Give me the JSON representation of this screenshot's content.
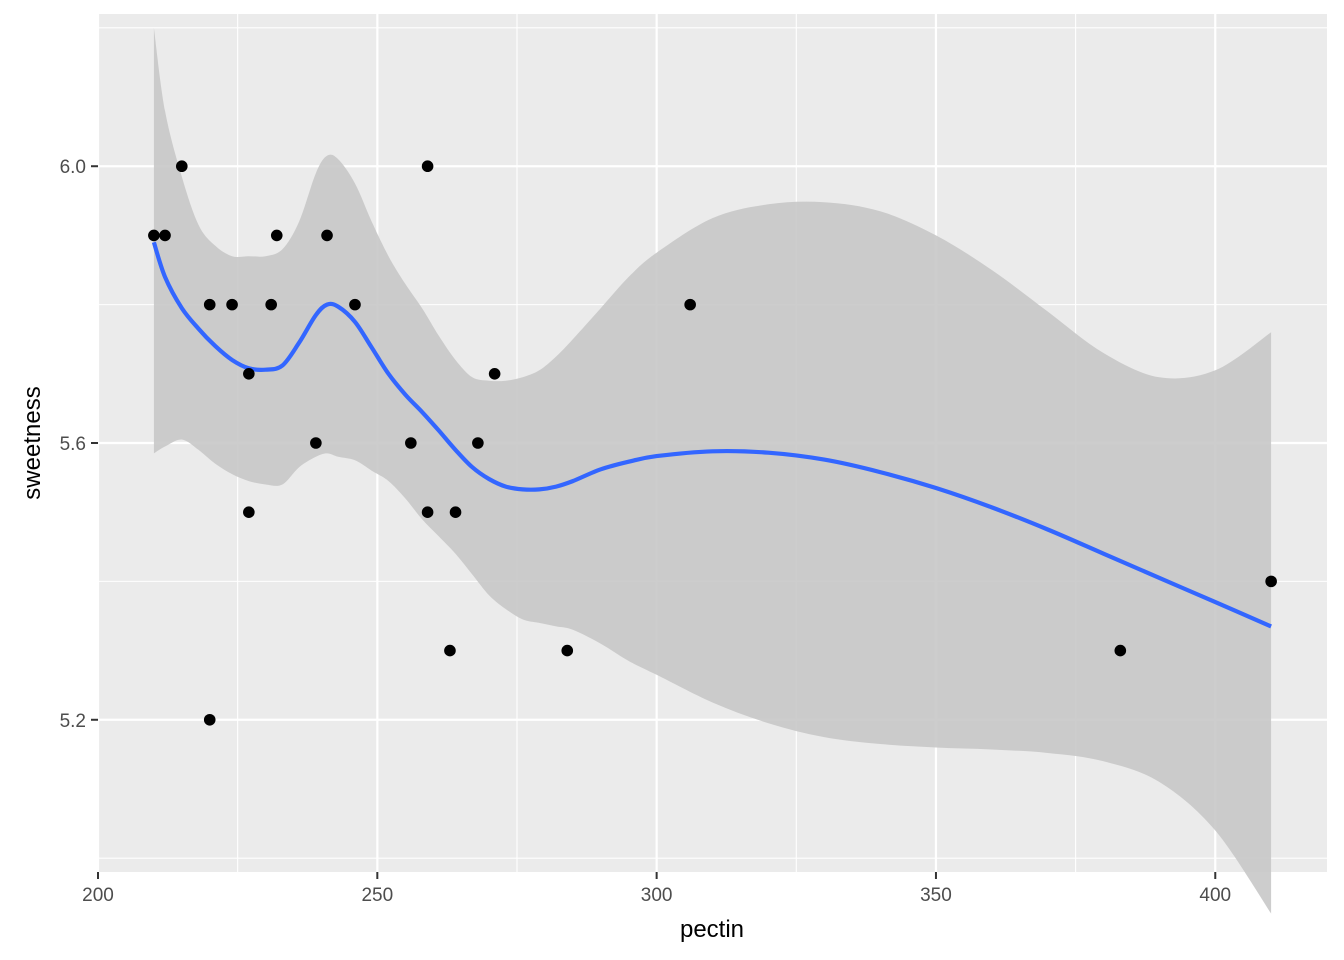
{
  "chart_data": {
    "type": "scatter",
    "title": "",
    "xlabel": "pectin",
    "ylabel": "sweetness",
    "xlim": [
      200,
      420
    ],
    "ylim": [
      4.98,
      6.22
    ],
    "x_ticks": [
      200,
      250,
      300,
      350,
      400
    ],
    "x_tick_labels": [
      "200",
      "250",
      "300",
      "350",
      "400"
    ],
    "y_ticks": [
      5.2,
      5.6,
      6.0
    ],
    "y_tick_labels": [
      "5.2",
      "5.6",
      "6.0"
    ],
    "grid": true,
    "legend": "none",
    "colors": {
      "panel": "#ebebeb",
      "grid": "#ffffff",
      "points": "#000000",
      "smooth_line": "#3366ff",
      "ribbon": "#c8c8c8"
    },
    "points": [
      {
        "x": 210,
        "y": 5.9
      },
      {
        "x": 212,
        "y": 5.9
      },
      {
        "x": 215,
        "y": 6.0
      },
      {
        "x": 220,
        "y": 5.8
      },
      {
        "x": 220,
        "y": 5.2
      },
      {
        "x": 224,
        "y": 5.8
      },
      {
        "x": 227,
        "y": 5.7
      },
      {
        "x": 227,
        "y": 5.5
      },
      {
        "x": 231,
        "y": 5.8
      },
      {
        "x": 232,
        "y": 5.9
      },
      {
        "x": 239,
        "y": 5.6
      },
      {
        "x": 241,
        "y": 5.9
      },
      {
        "x": 246,
        "y": 5.8
      },
      {
        "x": 256,
        "y": 5.6
      },
      {
        "x": 259,
        "y": 6.0
      },
      {
        "x": 259,
        "y": 5.5
      },
      {
        "x": 263,
        "y": 5.3
      },
      {
        "x": 264,
        "y": 5.5
      },
      {
        "x": 268,
        "y": 5.6
      },
      {
        "x": 271,
        "y": 5.7
      },
      {
        "x": 284,
        "y": 5.3
      },
      {
        "x": 306,
        "y": 5.8
      },
      {
        "x": 383,
        "y": 5.3
      },
      {
        "x": 410,
        "y": 5.4
      }
    ],
    "smooth": {
      "method": "loess",
      "x": [
        210,
        212,
        215,
        218,
        221,
        224,
        227,
        230,
        233,
        236,
        239,
        241,
        243,
        246,
        249,
        252,
        255,
        258,
        261,
        264,
        267,
        270,
        273,
        276,
        279,
        282,
        285,
        290,
        295,
        300,
        310,
        320,
        330,
        340,
        350,
        360,
        370,
        380,
        390,
        400,
        410
      ],
      "y": [
        5.89,
        5.84,
        5.795,
        5.765,
        5.74,
        5.72,
        5.708,
        5.706,
        5.712,
        5.745,
        5.785,
        5.8,
        5.797,
        5.775,
        5.738,
        5.7,
        5.67,
        5.645,
        5.618,
        5.59,
        5.565,
        5.548,
        5.537,
        5.533,
        5.533,
        5.537,
        5.545,
        5.562,
        5.573,
        5.581,
        5.588,
        5.586,
        5.576,
        5.558,
        5.535,
        5.507,
        5.475,
        5.44,
        5.405,
        5.37,
        5.335
      ],
      "upper": [
        6.2,
        6.08,
        5.985,
        5.915,
        5.885,
        5.87,
        5.87,
        5.87,
        5.88,
        5.92,
        5.99,
        6.015,
        6.01,
        5.975,
        5.92,
        5.87,
        5.83,
        5.795,
        5.755,
        5.72,
        5.695,
        5.69,
        5.69,
        5.695,
        5.705,
        5.725,
        5.75,
        5.795,
        5.84,
        5.875,
        5.925,
        5.945,
        5.948,
        5.935,
        5.9,
        5.85,
        5.79,
        5.73,
        5.695,
        5.705,
        5.76
      ],
      "lower": [
        5.585,
        5.595,
        5.605,
        5.59,
        5.57,
        5.555,
        5.545,
        5.54,
        5.54,
        5.565,
        5.58,
        5.585,
        5.58,
        5.575,
        5.56,
        5.545,
        5.52,
        5.49,
        5.465,
        5.44,
        5.41,
        5.38,
        5.36,
        5.345,
        5.34,
        5.335,
        5.33,
        5.31,
        5.285,
        5.265,
        5.225,
        5.195,
        5.175,
        5.165,
        5.16,
        5.157,
        5.152,
        5.14,
        5.11,
        5.04,
        4.92
      ]
    }
  }
}
